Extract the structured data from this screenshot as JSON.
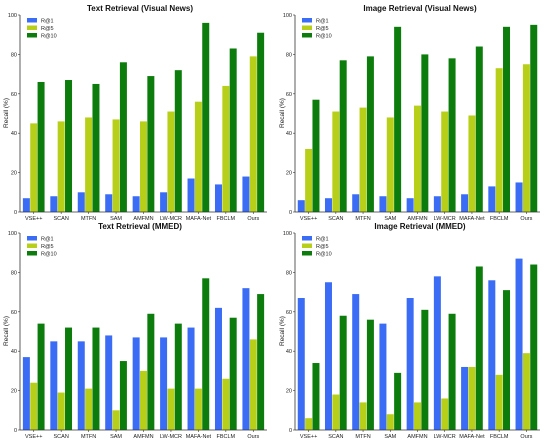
{
  "colors": {
    "r1": "#3b6cf5",
    "r5": "#b8cf1a",
    "r10": "#0c7d0c"
  },
  "chart_data": [
    {
      "type": "bar",
      "title": "Text Retrieval (Visual News)",
      "ylabel": "Recall (%)",
      "ylim": [
        0,
        100
      ],
      "yticks": [
        "0",
        "20",
        "40",
        "60",
        "80",
        "100"
      ],
      "categories": [
        "VSE++",
        "SCAN",
        "MTFN",
        "SAM",
        "AMFMN",
        "LW-MCR",
        "MAFA-Net",
        "FBCLM",
        "Ours"
      ],
      "legend_position": "top-left",
      "series": [
        {
          "name": "R@1",
          "values": [
            7,
            8,
            10,
            9,
            8,
            10,
            17,
            14,
            18
          ]
        },
        {
          "name": "R@5",
          "values": [
            45,
            46,
            48,
            47,
            46,
            51,
            56,
            64,
            79
          ]
        },
        {
          "name": "R@10",
          "values": [
            66,
            67,
            65,
            76,
            69,
            72,
            96,
            83,
            91
          ]
        }
      ]
    },
    {
      "type": "bar",
      "title": "Image Retrieval (Visual News)",
      "ylabel": "Recall (%)",
      "ylim": [
        0,
        100
      ],
      "yticks": [
        "0",
        "20",
        "40",
        "60",
        "80",
        "100"
      ],
      "categories": [
        "VSE++",
        "SCAN",
        "MTFN",
        "SAM",
        "AMFMN",
        "LW-MCR",
        "MAFA-Net",
        "FBCLM",
        "Ours"
      ],
      "legend_position": "top-left",
      "series": [
        {
          "name": "R@1",
          "values": [
            6,
            7,
            9,
            8,
            7,
            8,
            9,
            13,
            15
          ]
        },
        {
          "name": "R@5",
          "values": [
            32,
            51,
            53,
            48,
            54,
            51,
            49,
            73,
            75
          ]
        },
        {
          "name": "R@10",
          "values": [
            57,
            77,
            79,
            94,
            80,
            78,
            84,
            94,
            95
          ]
        }
      ]
    },
    {
      "type": "bar",
      "title": "Text Retrieval (MMED)",
      "ylabel": "Recall (%)",
      "ylim": [
        0,
        100
      ],
      "yticks": [
        "0",
        "20",
        "40",
        "60",
        "80",
        "100"
      ],
      "categories": [
        "VSE++",
        "SCAN",
        "MTFN",
        "SAM",
        "AMFMN",
        "LW-MCR",
        "MAFA-Net",
        "FBCLM",
        "Ours"
      ],
      "legend_position": "top-left",
      "series": [
        {
          "name": "R@1",
          "values": [
            37,
            45,
            45,
            48,
            47,
            47,
            52,
            62,
            72
          ]
        },
        {
          "name": "R@5",
          "values": [
            24,
            19,
            21,
            10,
            30,
            21,
            21,
            26,
            46
          ]
        },
        {
          "name": "R@10",
          "values": [
            54,
            52,
            52,
            35,
            59,
            54,
            77,
            57,
            69
          ]
        }
      ]
    },
    {
      "type": "bar",
      "title": "Image Retrieval (MMED)",
      "ylabel": "Recall (%)",
      "ylim": [
        0,
        100
      ],
      "yticks": [
        "0",
        "20",
        "40",
        "60",
        "80",
        "100"
      ],
      "categories": [
        "VSE++",
        "SCAN",
        "MTFN",
        "SAM",
        "AMFMN",
        "LW-MCR",
        "MAFA-Net",
        "FBCLM",
        "Ours"
      ],
      "legend_position": "top-left",
      "series": [
        {
          "name": "R@1",
          "values": [
            67,
            75,
            69,
            54,
            67,
            78,
            32,
            76,
            87
          ]
        },
        {
          "name": "R@5",
          "values": [
            6,
            18,
            14,
            8,
            14,
            16,
            32,
            28,
            39
          ]
        },
        {
          "name": "R@10",
          "values": [
            34,
            58,
            56,
            29,
            61,
            59,
            83,
            71,
            84
          ]
        }
      ]
    }
  ]
}
